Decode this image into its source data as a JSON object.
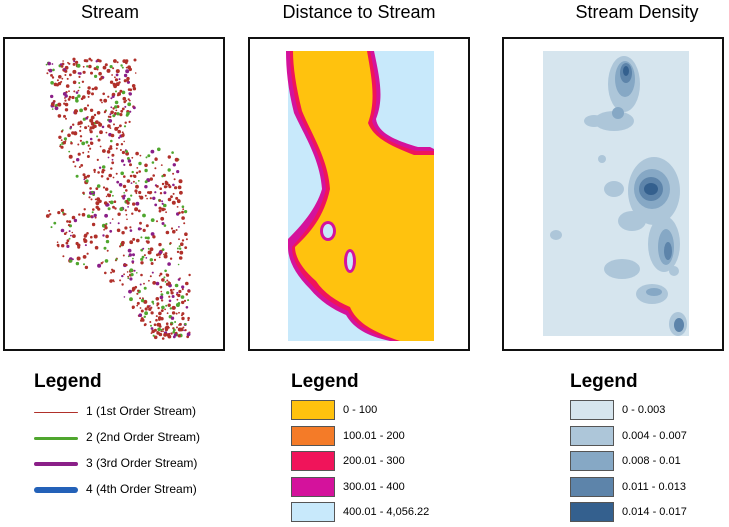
{
  "panels": [
    {
      "title": "Stream"
    },
    {
      "title": "Distance to Stream"
    },
    {
      "title": "Stream Density"
    }
  ],
  "legends": [
    {
      "title": "Legend",
      "items": [
        {
          "label": "1 (1st Order Stream)",
          "color": "#b0302a",
          "weight": 1
        },
        {
          "label": "2 (2nd Order Stream)",
          "color": "#4fa62e",
          "weight": 3
        },
        {
          "label": "3 (3rd Order Stream)",
          "color": "#8a1f88",
          "weight": 4
        },
        {
          "label": "4 (4th Order Stream)",
          "color": "#2361b8",
          "weight": 6
        }
      ]
    },
    {
      "title": "Legend",
      "items": [
        {
          "label": "0 - 100",
          "color": "#ffc20e"
        },
        {
          "label": "100.01 - 200",
          "color": "#f47b28"
        },
        {
          "label": "200.01 - 300",
          "color": "#f0145a"
        },
        {
          "label": "300.01 - 400",
          "color": "#d4129c"
        },
        {
          "label": "400.01 - 4,056.22",
          "color": "#c8e9fb"
        }
      ]
    },
    {
      "title": "Legend",
      "items": [
        {
          "label": "0 - 0.003",
          "color": "#d6e5ee"
        },
        {
          "label": "0.004 - 0.007",
          "color": "#adc6d9"
        },
        {
          "label": "0.008 - 0.01",
          "color": "#86a8c5"
        },
        {
          "label": "0.011 - 0.013",
          "color": "#5d84aa"
        },
        {
          "label": "0.014 - 0.017",
          "color": "#34608e"
        }
      ]
    }
  ]
}
